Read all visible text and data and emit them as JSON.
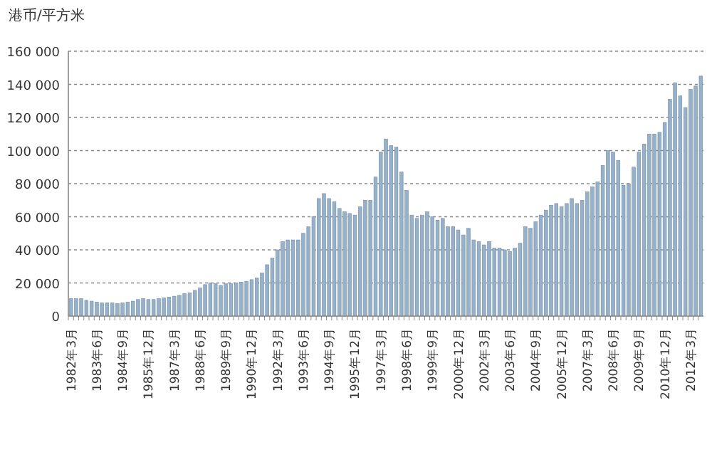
{
  "chart_data": {
    "type": "bar",
    "ylabel": "港币/平方米",
    "categories": [
      "1982年3月",
      null,
      null,
      null,
      null,
      "1983年6月",
      null,
      null,
      null,
      null,
      "1984年9月",
      null,
      null,
      null,
      null,
      "1985年12月",
      null,
      null,
      null,
      null,
      "1987年3月",
      null,
      null,
      null,
      null,
      "1988年6月",
      null,
      null,
      null,
      null,
      "1989年9月",
      null,
      null,
      null,
      null,
      "1990年12月",
      null,
      null,
      null,
      null,
      "1992年3月",
      null,
      null,
      null,
      null,
      "1993年6月",
      null,
      null,
      null,
      null,
      "1994年9月",
      null,
      null,
      null,
      null,
      "1995年12月",
      null,
      null,
      null,
      null,
      "1997年3月",
      null,
      null,
      null,
      null,
      "1998年6月",
      null,
      null,
      null,
      null,
      "1999年9月",
      null,
      null,
      null,
      null,
      "2000年12月",
      null,
      null,
      null,
      null,
      "2002年3月",
      null,
      null,
      null,
      null,
      "2003年6月",
      null,
      null,
      null,
      null,
      "2004年9月",
      null,
      null,
      null,
      null,
      "2005年12月",
      null,
      null,
      null,
      null,
      "2007年3月",
      null,
      null,
      null,
      null,
      "2008年6月",
      null,
      null,
      null,
      null,
      "2009年9月",
      null,
      null,
      null,
      null,
      "2010年12月",
      null,
      null,
      null,
      null,
      "2012年3月",
      null,
      null
    ],
    "values": [
      10500,
      10500,
      10500,
      9500,
      9000,
      8500,
      8000,
      8000,
      8000,
      7500,
      8000,
      8500,
      9000,
      10000,
      10500,
      10000,
      10000,
      10500,
      11000,
      11500,
      12000,
      12500,
      13500,
      14000,
      15500,
      17000,
      19000,
      20000,
      19500,
      18500,
      19500,
      19500,
      20000,
      20500,
      21000,
      22000,
      23000,
      26000,
      31000,
      35000,
      40000,
      45000,
      46000,
      46000,
      46000,
      50000,
      54000,
      60000,
      71000,
      74000,
      71000,
      69000,
      65000,
      63000,
      62000,
      61000,
      66000,
      70000,
      70000,
      84000,
      99000,
      107000,
      103000,
      102000,
      87000,
      76000,
      61000,
      59000,
      61000,
      63000,
      60000,
      58000,
      59000,
      54000,
      54000,
      52000,
      49000,
      53000,
      46000,
      45000,
      43000,
      45000,
      41000,
      41000,
      40000,
      39000,
      41000,
      44000,
      54000,
      53000,
      57000,
      61000,
      64000,
      67000,
      68000,
      66000,
      68000,
      71000,
      68000,
      70000,
      75000,
      78000,
      81000,
      91000,
      100000,
      99000,
      94000,
      79000,
      80000,
      90000,
      99000,
      104000,
      110000,
      110000,
      111000,
      117000,
      131000,
      141000,
      133000,
      126000,
      137000,
      139000,
      145000
    ],
    "color": "#97b1c9",
    "ylim": [
      0,
      160000
    ],
    "yticks": [
      0,
      {
        "value": 20000,
        "label": "20 000"
      },
      {
        "value": 40000,
        "label": "40 000"
      },
      {
        "value": 60000,
        "label": "60 000"
      },
      {
        "value": 80000,
        "label": "80 000"
      },
      {
        "value": 100000,
        "label": "100 000"
      },
      {
        "value": 120000,
        "label": "120 000"
      },
      {
        "value": 140000,
        "label": "140 000"
      },
      {
        "value": 160000,
        "label": "160 000"
      }
    ],
    "grid": "y"
  }
}
